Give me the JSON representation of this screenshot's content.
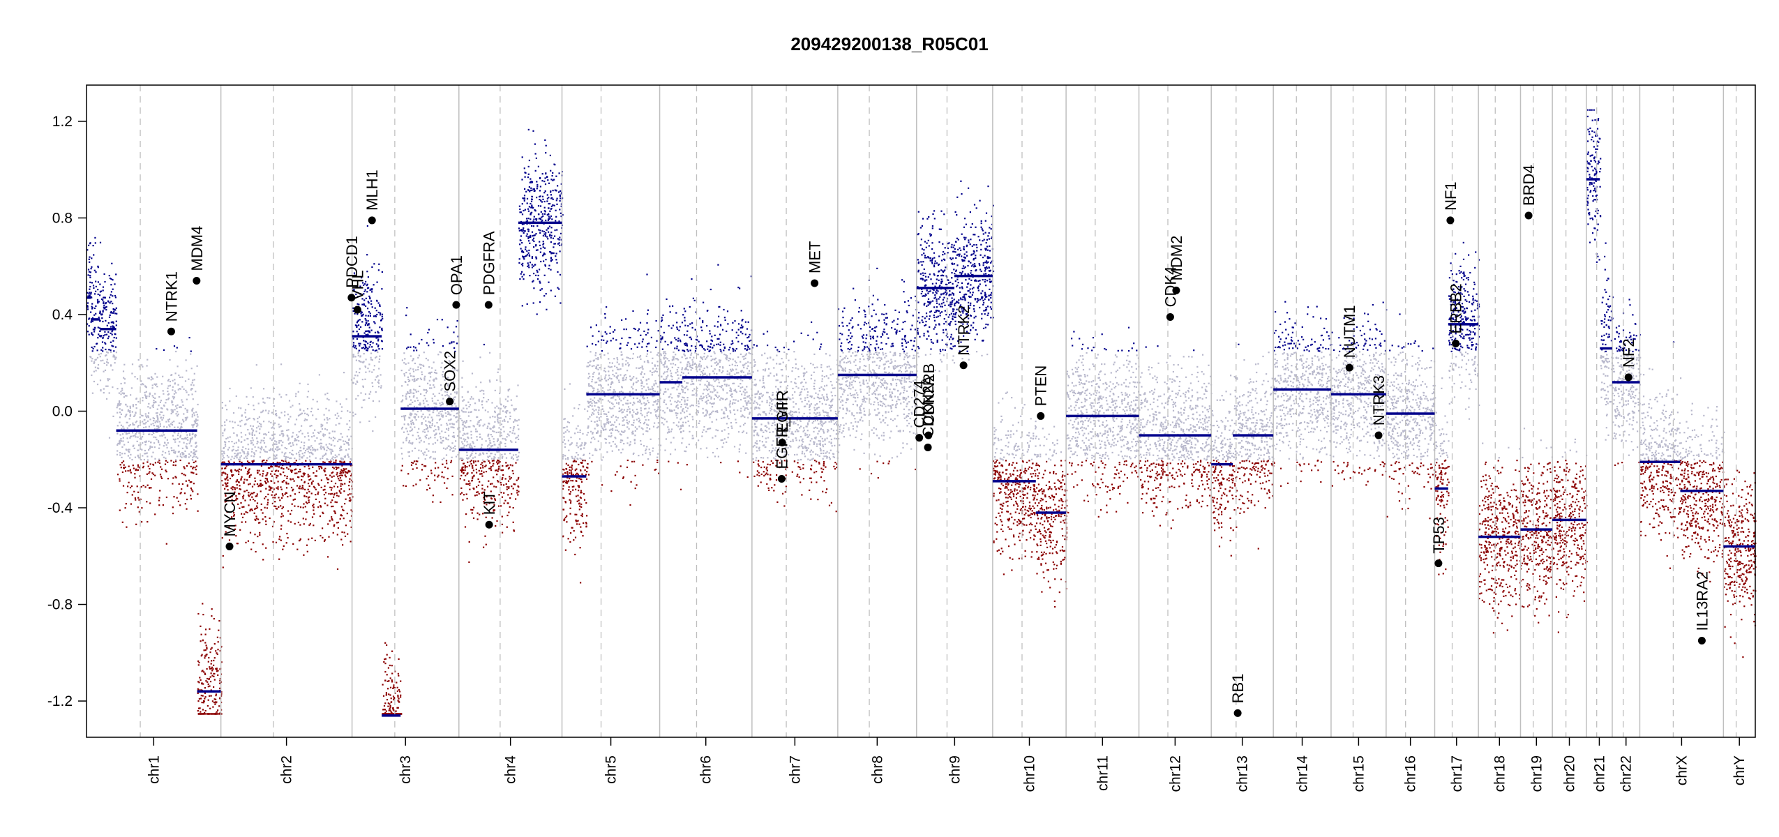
{
  "chart_data": {
    "type": "scatter",
    "title": "209429200138_R05C01",
    "xlabel": "",
    "ylabel": "",
    "ylim": [
      -1.35,
      1.35
    ],
    "y_ticks": [
      -1.2,
      -0.8,
      -0.4,
      0.0,
      0.4,
      0.8,
      1.2
    ],
    "y_tick_labels": [
      "-1.2",
      "-0.8",
      "-0.4",
      "0.0",
      "0.4",
      "0.8",
      "1.2"
    ],
    "grid": false,
    "colors": {
      "gain": "#00008b",
      "loss": "#8b0000",
      "neutral": "#b8b8cc",
      "segment": "#00008b",
      "chrom_border": "#bfbfbf",
      "centromere": "#bfbfbf",
      "gene_point": "#000000"
    },
    "chromosomes": [
      {
        "name": "chr1",
        "size": 249
      },
      {
        "name": "chr2",
        "size": 243
      },
      {
        "name": "chr3",
        "size": 198
      },
      {
        "name": "chr4",
        "size": 191
      },
      {
        "name": "chr5",
        "size": 181
      },
      {
        "name": "chr6",
        "size": 171
      },
      {
        "name": "chr7",
        "size": 159
      },
      {
        "name": "chr8",
        "size": 146
      },
      {
        "name": "chr9",
        "size": 141
      },
      {
        "name": "chr10",
        "size": 136
      },
      {
        "name": "chr11",
        "size": 135
      },
      {
        "name": "chr12",
        "size": 134
      },
      {
        "name": "chr13",
        "size": 115
      },
      {
        "name": "chr14",
        "size": 107
      },
      {
        "name": "chr15",
        "size": 102
      },
      {
        "name": "chr16",
        "size": 90
      },
      {
        "name": "chr17",
        "size": 81
      },
      {
        "name": "chr18",
        "size": 78
      },
      {
        "name": "chr19",
        "size": 59
      },
      {
        "name": "chr20",
        "size": 63
      },
      {
        "name": "chr21",
        "size": 48
      },
      {
        "name": "chr22",
        "size": 51
      },
      {
        "name": "chrX",
        "size": 155
      },
      {
        "name": "chrY",
        "size": 59
      }
    ],
    "segments": [
      {
        "chr": "chr1",
        "start": 0,
        "end": 8,
        "value": 0.47
      },
      {
        "chr": "chr1",
        "start": 8,
        "end": 25,
        "value": 0.38
      },
      {
        "chr": "chr1",
        "start": 25,
        "end": 55,
        "value": 0.34
      },
      {
        "chr": "chr1",
        "start": 55,
        "end": 205,
        "value": -0.08
      },
      {
        "chr": "chr1",
        "start": 205,
        "end": 249,
        "value": -1.16
      },
      {
        "chr": "chr2",
        "start": 0,
        "end": 243,
        "value": -0.22
      },
      {
        "chr": "chr3",
        "start": 0,
        "end": 55,
        "value": 0.31
      },
      {
        "chr": "chr3",
        "start": 55,
        "end": 90,
        "value": -1.26
      },
      {
        "chr": "chr3",
        "start": 90,
        "end": 198,
        "value": 0.01
      },
      {
        "chr": "chr4",
        "start": 0,
        "end": 110,
        "value": -0.16
      },
      {
        "chr": "chr4",
        "start": 110,
        "end": 191,
        "value": 0.78
      },
      {
        "chr": "chr5",
        "start": 0,
        "end": 45,
        "value": -0.27
      },
      {
        "chr": "chr5",
        "start": 45,
        "end": 181,
        "value": 0.07
      },
      {
        "chr": "chr6",
        "start": 0,
        "end": 42,
        "value": 0.12
      },
      {
        "chr": "chr6",
        "start": 42,
        "end": 171,
        "value": 0.14
      },
      {
        "chr": "chr7",
        "start": 0,
        "end": 159,
        "value": -0.03
      },
      {
        "chr": "chr8",
        "start": 0,
        "end": 146,
        "value": 0.15
      },
      {
        "chr": "chr9",
        "start": 0,
        "end": 70,
        "value": 0.51
      },
      {
        "chr": "chr9",
        "start": 70,
        "end": 141,
        "value": 0.56
      },
      {
        "chr": "chr10",
        "start": 0,
        "end": 80,
        "value": -0.29
      },
      {
        "chr": "chr10",
        "start": 80,
        "end": 136,
        "value": -0.42
      },
      {
        "chr": "chr11",
        "start": 0,
        "end": 135,
        "value": -0.02
      },
      {
        "chr": "chr12",
        "start": 0,
        "end": 134,
        "value": -0.1
      },
      {
        "chr": "chr13",
        "start": 0,
        "end": 40,
        "value": -0.22
      },
      {
        "chr": "chr13",
        "start": 40,
        "end": 115,
        "value": -0.1
      },
      {
        "chr": "chr14",
        "start": 0,
        "end": 107,
        "value": 0.09
      },
      {
        "chr": "chr15",
        "start": 0,
        "end": 102,
        "value": 0.07
      },
      {
        "chr": "chr16",
        "start": 0,
        "end": 90,
        "value": -0.01
      },
      {
        "chr": "chr17",
        "start": 0,
        "end": 25,
        "value": -0.32
      },
      {
        "chr": "chr17",
        "start": 25,
        "end": 81,
        "value": 0.36
      },
      {
        "chr": "chr18",
        "start": 0,
        "end": 78,
        "value": -0.52
      },
      {
        "chr": "chr19",
        "start": 0,
        "end": 59,
        "value": -0.49
      },
      {
        "chr": "chr20",
        "start": 0,
        "end": 63,
        "value": -0.45
      },
      {
        "chr": "chr21",
        "start": 0,
        "end": 25,
        "value": 0.96
      },
      {
        "chr": "chr21",
        "start": 25,
        "end": 48,
        "value": 0.26
      },
      {
        "chr": "chr22",
        "start": 0,
        "end": 51,
        "value": 0.12
      },
      {
        "chr": "chrX",
        "start": 0,
        "end": 75,
        "value": -0.21
      },
      {
        "chr": "chrX",
        "start": 75,
        "end": 155,
        "value": -0.33
      },
      {
        "chr": "chrY",
        "start": 0,
        "end": 59,
        "value": -0.56
      }
    ],
    "genes": [
      {
        "name": "NTRK1",
        "chr": "chr1",
        "pos": 157,
        "value": 0.33
      },
      {
        "name": "MDM4",
        "chr": "chr1",
        "pos": 204,
        "value": 0.54
      },
      {
        "name": "MYCN",
        "chr": "chr2",
        "pos": 16,
        "value": -0.56
      },
      {
        "name": "PDCD1",
        "chr": "chr2",
        "pos": 242,
        "value": 0.47
      },
      {
        "name": "VHL",
        "chr": "chr3",
        "pos": 10,
        "value": 0.42
      },
      {
        "name": "MLH1",
        "chr": "chr3",
        "pos": 37,
        "value": 0.79
      },
      {
        "name": "SOX2",
        "chr": "chr3",
        "pos": 181,
        "value": 0.04
      },
      {
        "name": "OPA1",
        "chr": "chr3",
        "pos": 193,
        "value": 0.44
      },
      {
        "name": "PDGFRA",
        "chr": "chr4",
        "pos": 55,
        "value": 0.44
      },
      {
        "name": "KIT",
        "chr": "chr4",
        "pos": 56,
        "value": -0.47
      },
      {
        "name": "EGFR_vIII",
        "chr": "chr7",
        "pos": 55,
        "value": -0.28
      },
      {
        "name": "EGFR",
        "chr": "chr7",
        "pos": 56,
        "value": -0.13
      },
      {
        "name": "MET",
        "chr": "chr7",
        "pos": 116,
        "value": 0.53
      },
      {
        "name": "CD274",
        "chr": "chr9",
        "pos": 5,
        "value": -0.11
      },
      {
        "name": "CDKN2A",
        "chr": "chr9",
        "pos": 21,
        "value": -0.15
      },
      {
        "name": "CDKN2B",
        "chr": "chr9",
        "pos": 22,
        "value": -0.1
      },
      {
        "name": "NTRK2",
        "chr": "chr9",
        "pos": 87,
        "value": 0.19
      },
      {
        "name": "PTEN",
        "chr": "chr10",
        "pos": 89,
        "value": -0.02
      },
      {
        "name": "CDK4",
        "chr": "chr12",
        "pos": 58,
        "value": 0.39
      },
      {
        "name": "MDM2",
        "chr": "chr12",
        "pos": 69,
        "value": 0.5
      },
      {
        "name": "RB1",
        "chr": "chr13",
        "pos": 49,
        "value": -1.25
      },
      {
        "name": "NUTM1",
        "chr": "chr15",
        "pos": 34,
        "value": 0.18
      },
      {
        "name": "NTRK3",
        "chr": "chr15",
        "pos": 88,
        "value": -0.1
      },
      {
        "name": "TP53",
        "chr": "chr17",
        "pos": 7,
        "value": -0.63
      },
      {
        "name": "NF1",
        "chr": "chr17",
        "pos": 29,
        "value": 0.79
      },
      {
        "name": "ERBB2",
        "chr": "chr17",
        "pos": 39,
        "value": 0.28
      },
      {
        "name": "BRD4",
        "chr": "chr19",
        "pos": 15,
        "value": 0.81
      },
      {
        "name": "NF2",
        "chr": "chr22",
        "pos": 30,
        "value": 0.14
      },
      {
        "name": "IL13RA2",
        "chr": "chrX",
        "pos": 115,
        "value": -0.95
      }
    ]
  }
}
